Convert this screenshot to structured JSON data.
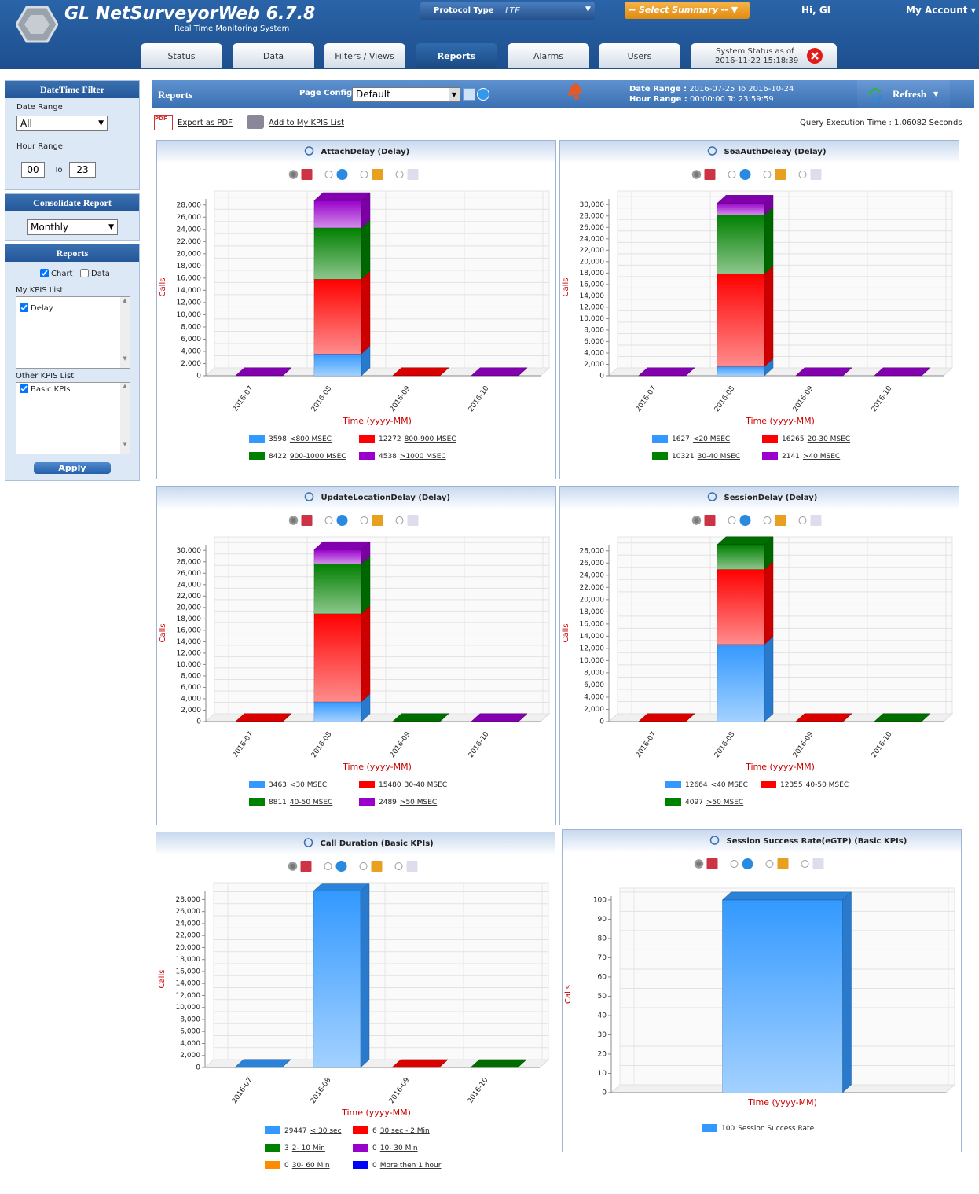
{
  "header": {
    "title": "GL NetSurveyorWeb 6.7.8",
    "subtitle": "Real Time Monitoring System",
    "protocol_label": "Protocol Type",
    "protocol_value": "LTE",
    "summary": "-- Select Summary --",
    "greeting": "Hi, Gl",
    "account": "My Account",
    "tabs": [
      "Status",
      "Data",
      "Filters / Views",
      "Reports",
      "Alarms",
      "Users"
    ],
    "active_tab": 3,
    "status_label": "System Status as of",
    "status_time": "2016-11-22 15:18:39"
  },
  "sidebar": {
    "datetime_title": "DateTime Filter",
    "date_range_label": "Date Range",
    "date_range_value": "All",
    "hour_range_label": "Hour Range",
    "hour_from": "00",
    "hour_to_label": "To",
    "hour_to": "23",
    "consolidate_title": "Consolidate Report",
    "consolidate_value": "Monthly",
    "reports_title": "Reports",
    "chart_label": "Chart",
    "data_label": "Data",
    "my_kpis_label": "My KPIS List",
    "my_kpis": [
      "Delay"
    ],
    "other_kpis_label": "Other KPIS List",
    "other_kpis": [
      "Basic KPIs"
    ],
    "apply": "Apply"
  },
  "toolbar": {
    "title": "Reports",
    "page_config_label": "Page Config",
    "page_config_value": "Default",
    "date_range_label": "Date Range :",
    "date_range": "2016-07-25 To 2016-10-24",
    "hour_range_label": "Hour Range :",
    "hour_range": "00:00:00 To 23:59:59",
    "refresh": "Refresh",
    "export": "Export as PDF",
    "add_kpis": "Add to My KPIS List",
    "query_label": "Query Execution Time :",
    "query_time": "1.06082 Seconds"
  },
  "chart_data": [
    {
      "type": "bar3d-stacked",
      "title": "AttachDelay (Delay)",
      "x_label": "Time (yyyy-MM)",
      "y_label": "Calls",
      "categories": [
        "2016-07",
        "2016-08",
        "2016-09",
        "2016-10"
      ],
      "ylim": [
        0,
        29000
      ],
      "yticks": [
        0,
        {
          "value": 2000,
          "label": "2,000"
        },
        {
          "value": 4000,
          "label": "4,000"
        },
        {
          "value": 6000,
          "label": "6,000"
        },
        {
          "value": 8000,
          "label": "8,000"
        },
        {
          "value": 10000,
          "label": "10,000"
        },
        {
          "value": 12000,
          "label": "12,000"
        },
        {
          "value": 14000,
          "label": "14,000"
        },
        {
          "value": 16000,
          "label": "16,000"
        },
        {
          "value": 18000,
          "label": "18,000"
        },
        {
          "value": 20000,
          "label": "20,000"
        },
        {
          "value": 22000,
          "label": "22,000"
        },
        {
          "value": 24000,
          "label": "24,000"
        },
        {
          "value": 26000,
          "label": "26,000"
        },
        {
          "value": 28000,
          "label": "28,000"
        }
      ],
      "series": [
        {
          "name": "<800 MSEC",
          "total": 3598,
          "color": "#3399ff",
          "values": [
            0,
            3598,
            0,
            0
          ]
        },
        {
          "name": "800-900 MSEC",
          "total": 12272,
          "color": "#ff0000",
          "values": [
            0,
            12242,
            30,
            0
          ]
        },
        {
          "name": "900-1000 MSEC",
          "total": 8422,
          "color": "#008000",
          "values": [
            0,
            8422,
            0,
            0
          ]
        },
        {
          "name": ">1000 MSEC",
          "total": 4538,
          "color": "#9900cc",
          "values": [
            30,
            4478,
            0,
            30
          ]
        }
      ]
    },
    {
      "type": "bar3d-stacked",
      "title": "S6aAuthDeleay (Delay)",
      "x_label": "Time (yyyy-MM)",
      "y_label": "Calls",
      "categories": [
        "2016-07",
        "2016-08",
        "2016-09",
        "2016-10"
      ],
      "ylim": [
        0,
        31000
      ],
      "yticks": [
        0,
        {
          "value": 2000,
          "label": "2,000"
        },
        {
          "value": 4000,
          "label": "4,000"
        },
        {
          "value": 6000,
          "label": "6,000"
        },
        {
          "value": 8000,
          "label": "8,000"
        },
        {
          "value": 10000,
          "label": "10,000"
        },
        {
          "value": 12000,
          "label": "12,000"
        },
        {
          "value": 14000,
          "label": "14,000"
        },
        {
          "value": 16000,
          "label": "16,000"
        },
        {
          "value": 18000,
          "label": "18,000"
        },
        {
          "value": 20000,
          "label": "20,000"
        },
        {
          "value": 22000,
          "label": "22,000"
        },
        {
          "value": 24000,
          "label": "24,000"
        },
        {
          "value": 26000,
          "label": "26,000"
        },
        {
          "value": 28000,
          "label": "28,000"
        },
        {
          "value": 30000,
          "label": "30,000"
        }
      ],
      "series": [
        {
          "name": "<20 MSEC",
          "total": 1627,
          "color": "#3399ff",
          "values": [
            0,
            1627,
            0,
            0
          ]
        },
        {
          "name": "20-30 MSEC",
          "total": 16265,
          "color": "#ff0000",
          "values": [
            0,
            16265,
            0,
            0
          ]
        },
        {
          "name": "30-40 MSEC",
          "total": 10321,
          "color": "#008000",
          "values": [
            0,
            10321,
            0,
            0
          ]
        },
        {
          "name": ">40 MSEC",
          "total": 2141,
          "color": "#9900cc",
          "values": [
            30,
            2051,
            30,
            30
          ]
        }
      ]
    },
    {
      "type": "bar3d-stacked",
      "title": "UpdateLocationDelay (Delay)",
      "x_label": "Time (yyyy-MM)",
      "y_label": "Calls",
      "categories": [
        "2016-07",
        "2016-08",
        "2016-09",
        "2016-10"
      ],
      "ylim": [
        0,
        31000
      ],
      "yticks": [
        0,
        {
          "value": 2000,
          "label": "2,000"
        },
        {
          "value": 4000,
          "label": "4,000"
        },
        {
          "value": 6000,
          "label": "6,000"
        },
        {
          "value": 8000,
          "label": "8,000"
        },
        {
          "value": 10000,
          "label": "10,000"
        },
        {
          "value": 12000,
          "label": "12,000"
        },
        {
          "value": 14000,
          "label": "14,000"
        },
        {
          "value": 16000,
          "label": "16,000"
        },
        {
          "value": 18000,
          "label": "18,000"
        },
        {
          "value": 20000,
          "label": "20,000"
        },
        {
          "value": 22000,
          "label": "22,000"
        },
        {
          "value": 24000,
          "label": "24,000"
        },
        {
          "value": 26000,
          "label": "26,000"
        },
        {
          "value": 28000,
          "label": "28,000"
        },
        {
          "value": 30000,
          "label": "30,000"
        }
      ],
      "series": [
        {
          "name": "<30 MSEC",
          "total": 3463,
          "color": "#3399ff",
          "values": [
            0,
            3463,
            0,
            0
          ]
        },
        {
          "name": "30-40 MSEC",
          "total": 15480,
          "color": "#ff0000",
          "values": [
            30,
            15450,
            0,
            0
          ]
        },
        {
          "name": "40-50 MSEC",
          "total": 8811,
          "color": "#008000",
          "values": [
            0,
            8781,
            30,
            0
          ]
        },
        {
          "name": ">50 MSEC",
          "total": 2489,
          "color": "#9900cc",
          "values": [
            0,
            2459,
            0,
            30
          ]
        }
      ]
    },
    {
      "type": "bar3d-stacked",
      "title": "SessionDelay (Delay)",
      "x_label": "Time (yyyy-MM)",
      "y_label": "Calls",
      "categories": [
        "2016-07",
        "2016-08",
        "2016-09",
        "2016-10"
      ],
      "ylim": [
        0,
        29000
      ],
      "yticks": [
        0,
        {
          "value": 2000,
          "label": "2,000"
        },
        {
          "value": 4000,
          "label": "4,000"
        },
        {
          "value": 6000,
          "label": "6,000"
        },
        {
          "value": 8000,
          "label": "8,000"
        },
        {
          "value": 10000,
          "label": "10,000"
        },
        {
          "value": 12000,
          "label": "12,000"
        },
        {
          "value": 14000,
          "label": "14,000"
        },
        {
          "value": 16000,
          "label": "16,000"
        },
        {
          "value": 18000,
          "label": "18,000"
        },
        {
          "value": 20000,
          "label": "20,000"
        },
        {
          "value": 22000,
          "label": "22,000"
        },
        {
          "value": 24000,
          "label": "24,000"
        },
        {
          "value": 26000,
          "label": "26,000"
        },
        {
          "value": 28000,
          "label": "28,000"
        }
      ],
      "series": [
        {
          "name": "<40 MSEC",
          "total": 12664,
          "color": "#3399ff",
          "values": [
            0,
            12664,
            0,
            0
          ]
        },
        {
          "name": "40-50 MSEC",
          "total": 12355,
          "color": "#ff0000",
          "values": [
            30,
            12295,
            30,
            0
          ]
        },
        {
          "name": ">50 MSEC",
          "total": 4097,
          "color": "#008000",
          "values": [
            0,
            4067,
            0,
            30
          ]
        }
      ]
    },
    {
      "type": "bar3d-stacked",
      "title": "Call Duration (Basic KPIs)",
      "x_label": "Time (yyyy-MM)",
      "y_label": "Calls",
      "categories": [
        "2016-07",
        "2016-08",
        "2016-09",
        "2016-10"
      ],
      "ylim": [
        0,
        29500
      ],
      "yticks": [
        0,
        {
          "value": 2000,
          "label": "2,000"
        },
        {
          "value": 4000,
          "label": "4,000"
        },
        {
          "value": 6000,
          "label": "6,000"
        },
        {
          "value": 8000,
          "label": "8,000"
        },
        {
          "value": 10000,
          "label": "10,000"
        },
        {
          "value": 12000,
          "label": "12,000"
        },
        {
          "value": 14000,
          "label": "14,000"
        },
        {
          "value": 16000,
          "label": "16,000"
        },
        {
          "value": 18000,
          "label": "18,000"
        },
        {
          "value": 20000,
          "label": "20,000"
        },
        {
          "value": 22000,
          "label": "22,000"
        },
        {
          "value": 24000,
          "label": "24,000"
        },
        {
          "value": 26000,
          "label": "26,000"
        },
        {
          "value": 28000,
          "label": "28,000"
        }
      ],
      "series": [
        {
          "name": "< 30 sec",
          "total": 29447,
          "color": "#3399ff",
          "values": [
            30,
            29417,
            0,
            0
          ]
        },
        {
          "name": "30 sec - 2 Min",
          "total": 6,
          "color": "#ff0000",
          "values": [
            0,
            0,
            6,
            0
          ]
        },
        {
          "name": "2- 10 Min",
          "total": 3,
          "color": "#008000",
          "values": [
            0,
            0,
            0,
            3
          ]
        },
        {
          "name": "10- 30 Min",
          "total": 0,
          "color": "#9900cc",
          "values": [
            0,
            0,
            0,
            0
          ]
        },
        {
          "name": "30- 60 Min",
          "total": 0,
          "color": "#ff8c00",
          "values": [
            0,
            0,
            0,
            0
          ]
        },
        {
          "name": "More then 1 hour",
          "total": 0,
          "color": "#0000ff",
          "values": [
            0,
            0,
            0,
            0
          ]
        }
      ]
    },
    {
      "type": "bar3d",
      "title": "Session Success Rate(eGTP) (Basic KPIs)",
      "x_label": "Time (yyyy-MM)",
      "y_label": "Calls",
      "categories": [
        null
      ],
      "ylim": [
        0,
        102
      ],
      "yticks": [
        0,
        10,
        20,
        30,
        40,
        50,
        60,
        70,
        80,
        90,
        100
      ],
      "series": [
        {
          "name": "Session Success Rate",
          "total": 100,
          "color": "#3399ff",
          "values": [
            100
          ]
        }
      ]
    }
  ]
}
